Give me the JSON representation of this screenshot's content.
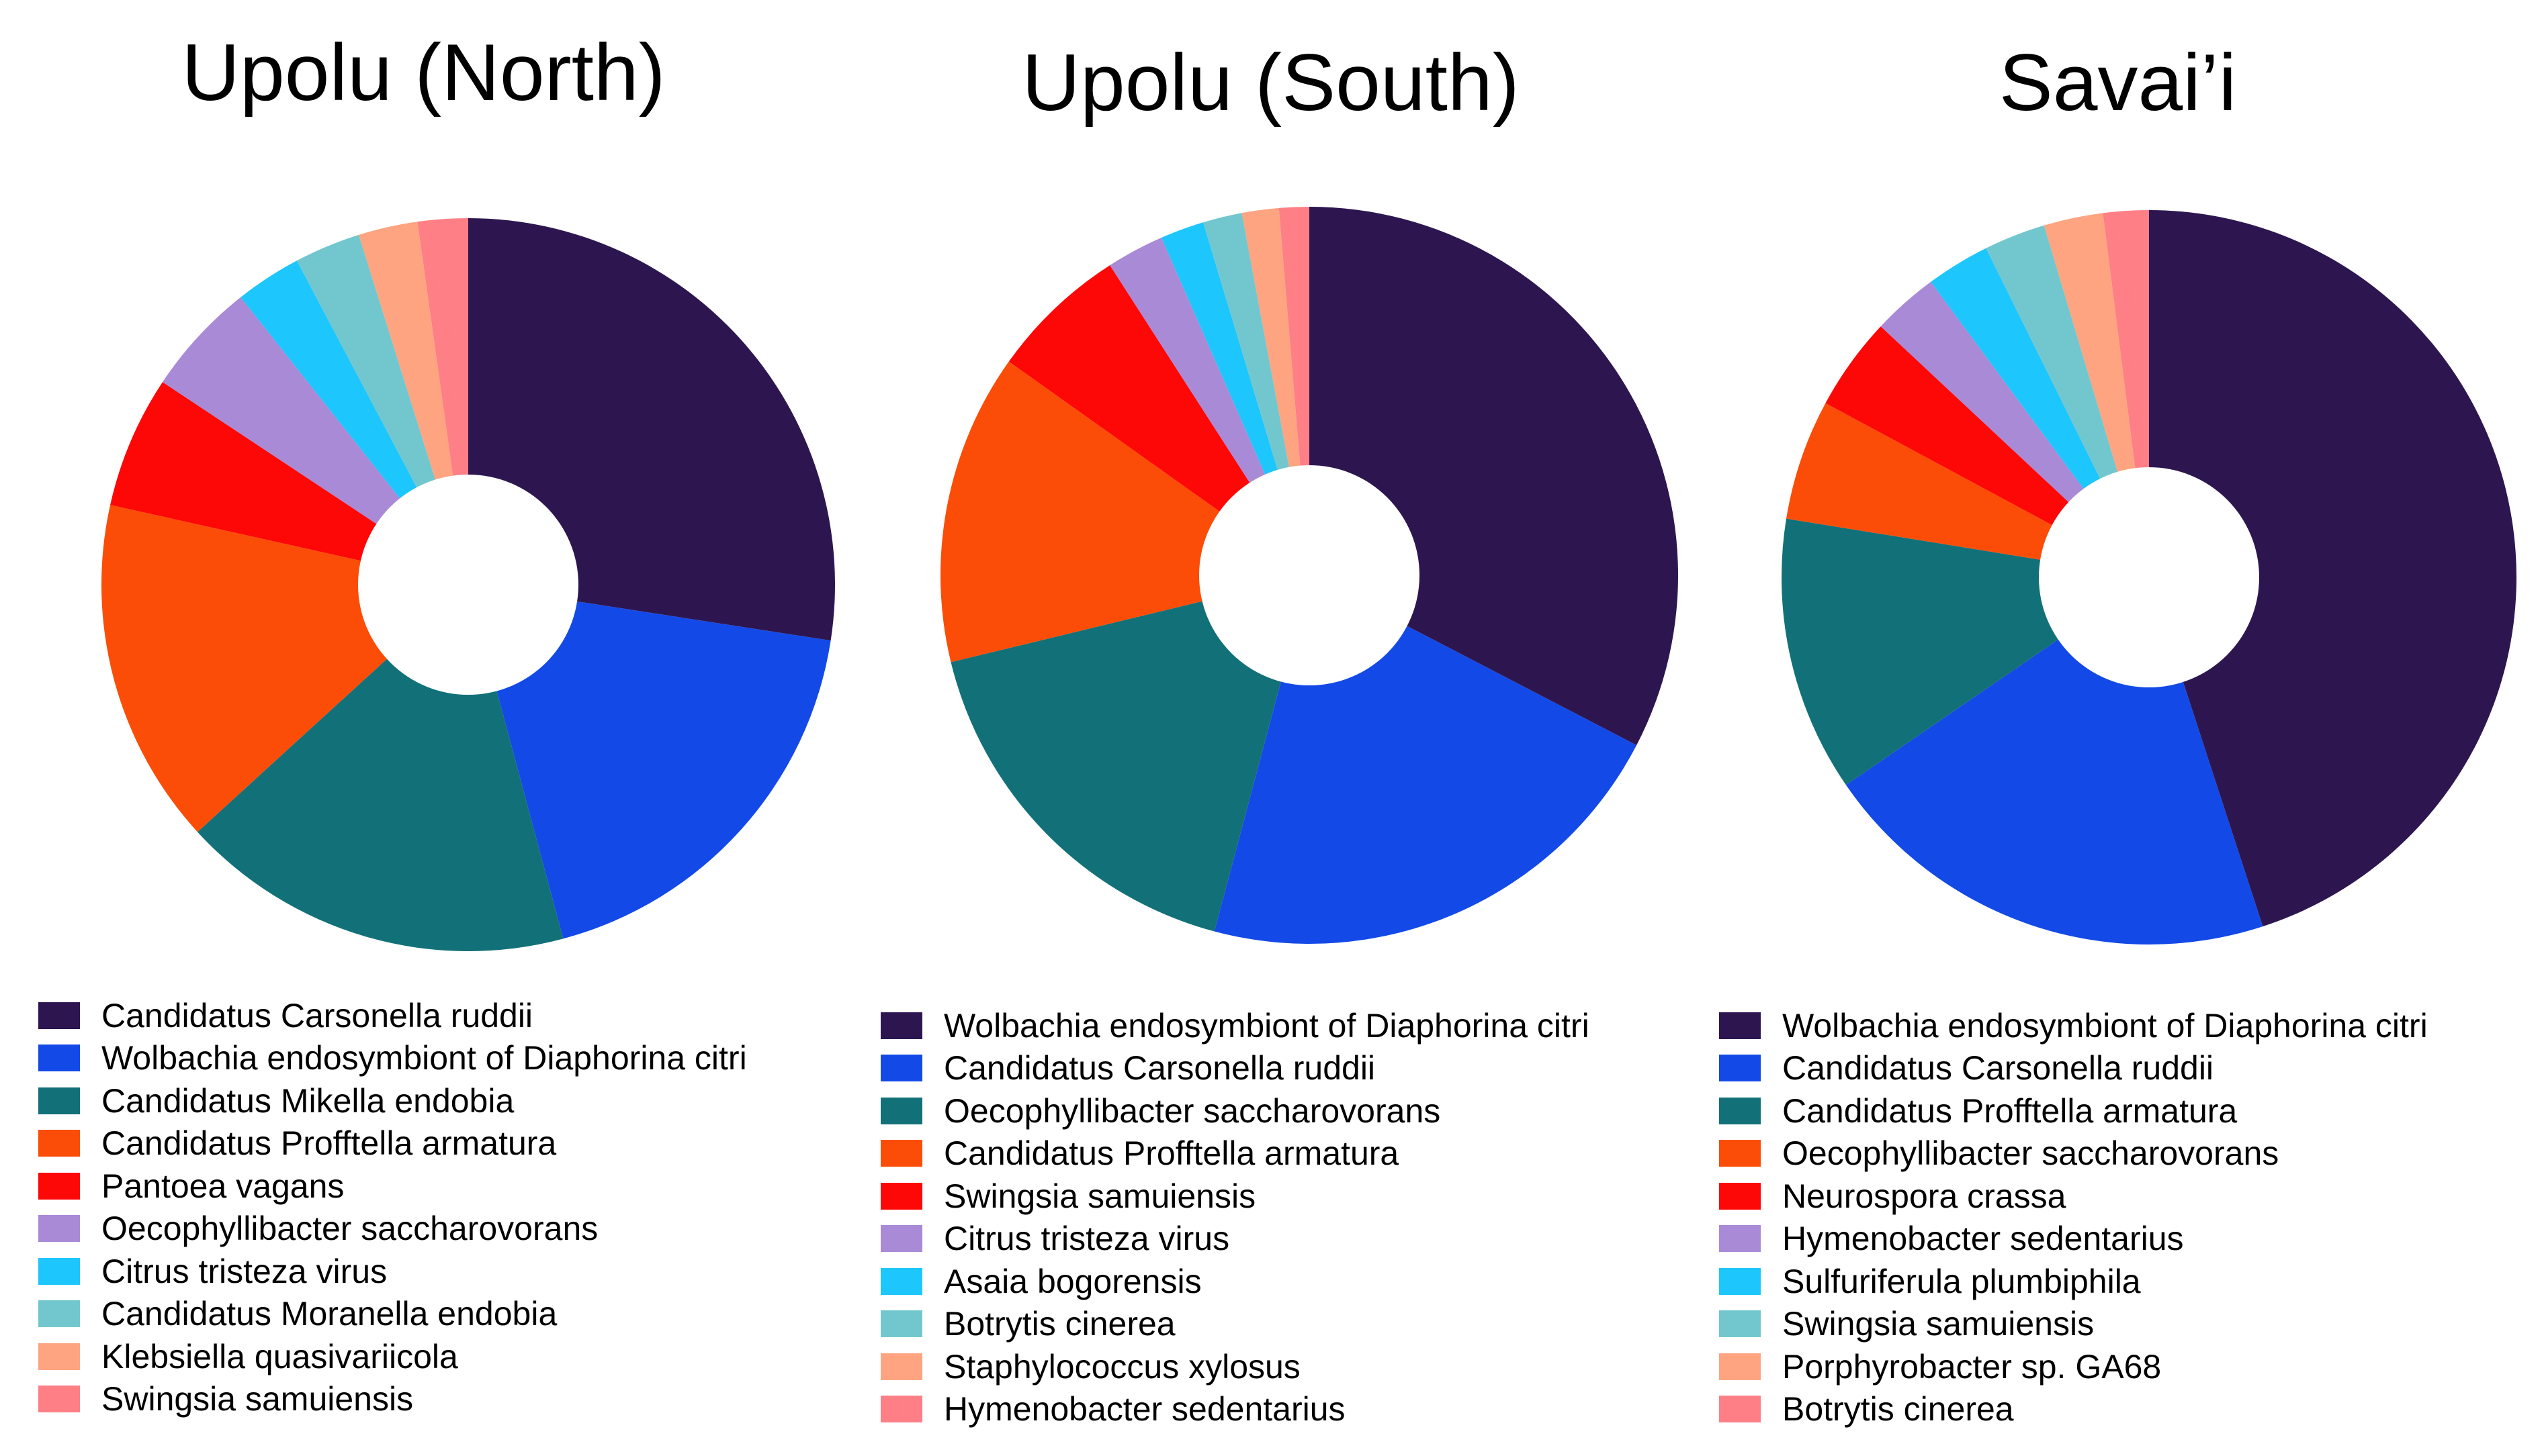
{
  "chart_data": [
    {
      "type": "pie",
      "title": "Upolu (North)",
      "hole": true,
      "categories": [
        "Candidatus Carsonella ruddii",
        "Wolbachia endosymbiont of Diaphorina citri",
        "Candidatus Mikella endobia",
        "Candidatus Profftella armatura",
        "Pantoea vagans",
        "Oecophyllibacter saccharovorans",
        "Citrus tristeza virus",
        "Candidatus Moranella endobia",
        "Klebsiella quasivariicola",
        "Swingsia samuiensis"
      ],
      "values": [
        27.3,
        18.3,
        17.3,
        15.2,
        5.8,
        5.0,
        2.9,
        2.9,
        2.6,
        2.2
      ],
      "colors": [
        "#2d1650",
        "#1349e6",
        "#127178",
        "#fb4d07",
        "#fe0707",
        "#a98ad6",
        "#1dc6fd",
        "#72c7ce",
        "#fea481",
        "#fe7f86"
      ]
    },
    {
      "type": "pie",
      "title": "Upolu (South)",
      "hole": true,
      "categories": [
        "Wolbachia endosymbiont of Diaphorina citri",
        "Candidatus Carsonella ruddii",
        "Oecophyllibacter saccharovorans",
        "Candidatus Profftella armatura",
        "Swingsia samuiensis",
        "Citrus tristeza virus",
        "Asaia bogorensis",
        "Botrytis cinerea",
        "Staphylococcus xylosus",
        "Hymenobacter sedentarius"
      ],
      "values": [
        32.3,
        21.3,
        16.9,
        13.5,
        6.0,
        2.5,
        1.9,
        1.7,
        1.6,
        1.3
      ],
      "colors": [
        "#2d1650",
        "#1349e6",
        "#127178",
        "#fb4d07",
        "#fe0707",
        "#a98ad6",
        "#1dc6fd",
        "#72c7ce",
        "#fea481",
        "#fe7f86"
      ]
    },
    {
      "type": "pie",
      "title": "Savai’i",
      "hole": true,
      "categories": [
        "Wolbachia endosymbiont of Diaphorina citri",
        "Candidatus Carsonella ruddii",
        "Candidatus Profftella armatura",
        "Oecophyllibacter saccharovorans",
        "Neurospora crassa",
        "Hymenobacter sedentarius",
        "Sulfuriferula plumbiphila",
        "Swingsia samuiensis",
        "Porphyrobacter sp. GA68",
        "Botrytis cinerea"
      ],
      "values": [
        44.9,
        20.4,
        12.1,
        5.3,
        4.1,
        2.9,
        2.8,
        2.7,
        2.6,
        2.0
      ],
      "colors": [
        "#2d1650",
        "#1349e6",
        "#127178",
        "#fb4d07",
        "#fe0707",
        "#a98ad6",
        "#1dc6fd",
        "#72c7ce",
        "#fea481",
        "#fe7f86"
      ]
    }
  ]
}
